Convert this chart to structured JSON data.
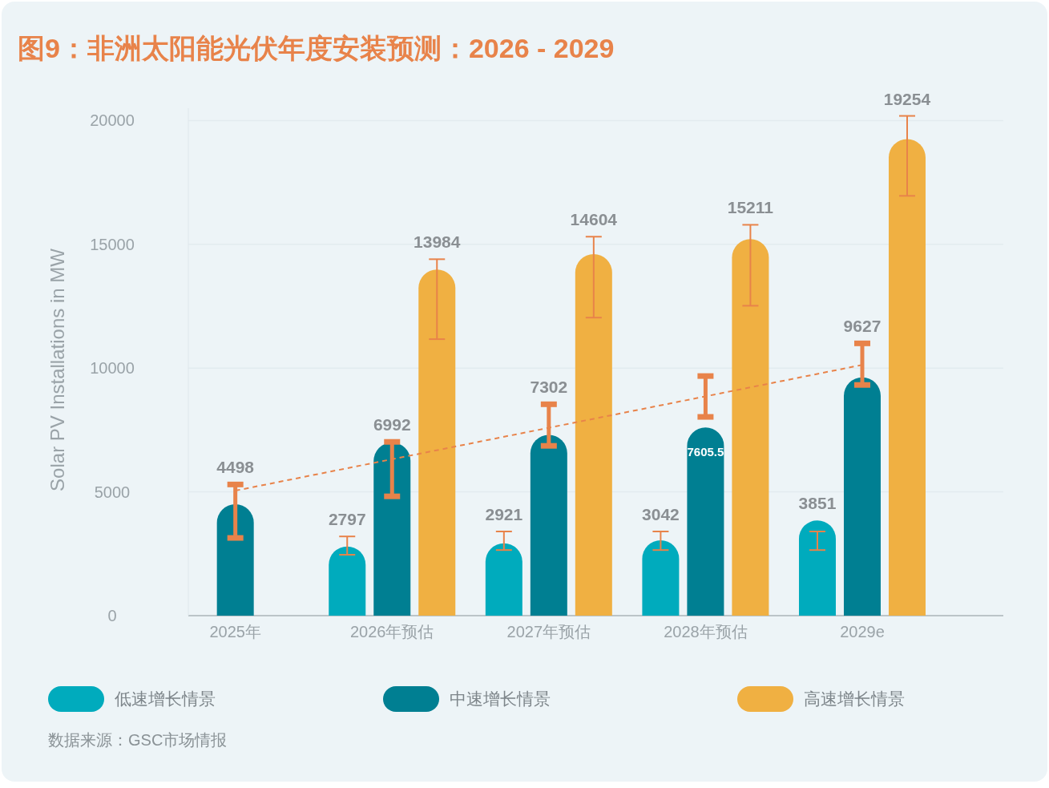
{
  "chart_data": {
    "type": "bar",
    "title": "图9：非洲太阳能光伏年度安装预测：2026 - 2029",
    "ylabel": "Solar PV Installations in MW",
    "categories": [
      "2025年",
      "2026年预估",
      "2027年预估",
      "2028年预估",
      "2029e"
    ],
    "series": [
      {
        "name": "低速增长情景",
        "color": "#00abbd",
        "values": [
          null,
          2797,
          2921,
          3042,
          3851
        ],
        "value_labels": [
          null,
          "2797",
          "2921",
          "3042",
          "3851"
        ],
        "errors": [
          null,
          [
            2460,
            3200
          ],
          [
            2650,
            3400
          ],
          [
            2650,
            3400
          ],
          [
            2650,
            3400
          ]
        ]
      },
      {
        "name": "中速增长情景",
        "color": "#007f92",
        "values": [
          4498,
          6992,
          7302,
          7605.5,
          9627
        ],
        "value_labels": [
          "4498",
          "6992",
          "7302",
          "7605.5",
          "9627"
        ],
        "errors": [
          [
            3140,
            5300
          ],
          [
            4820,
            7020
          ],
          [
            6860,
            8540
          ],
          [
            8030,
            9680
          ],
          [
            9320,
            11000
          ]
        ]
      },
      {
        "name": "高速增长情景",
        "color": "#f0b042",
        "values": [
          null,
          13984,
          14604,
          15211,
          19254
        ],
        "value_labels": [
          null,
          "13984",
          "14604",
          "15211",
          "19254"
        ],
        "errors": [
          null,
          [
            11170,
            14400
          ],
          [
            12040,
            15310
          ],
          [
            12520,
            15790
          ],
          [
            16960,
            20190
          ]
        ]
      },
      {
        "type": "line",
        "color": "#e8834a",
        "line_style": "dashed",
        "x": [
          "2025年",
          "2029e"
        ],
        "values": [
          5050,
          10130
        ]
      }
    ],
    "ylim": [
      0,
      20500
    ],
    "yticks": [
      0,
      5000,
      10000,
      15000,
      20000
    ],
    "grid": "y",
    "legend": "bottom",
    "annotations": [
      "数据来源：GSC市场情报"
    ]
  }
}
